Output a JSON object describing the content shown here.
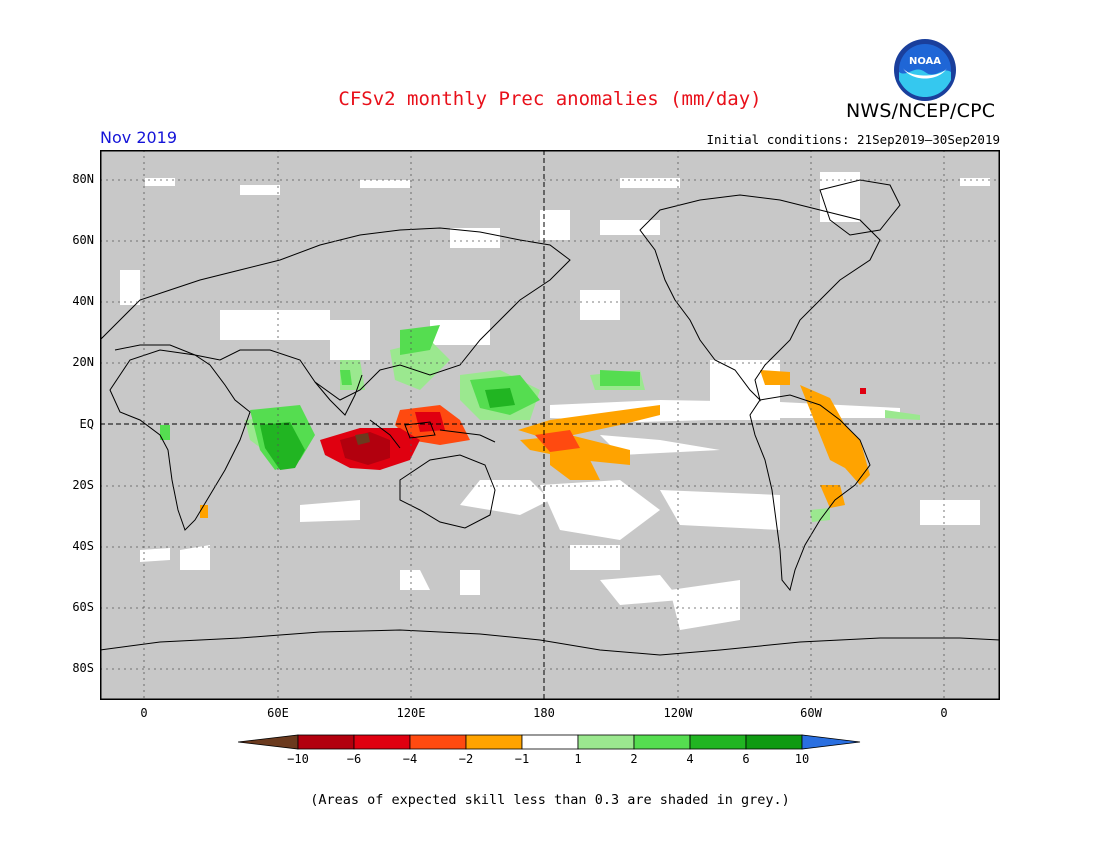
{
  "title": "CFSv2 monthly Prec anomalies (mm/day)",
  "organization": "NWS/NCEP/CPC",
  "logo_text": "NOAA",
  "month": "Nov 2019",
  "initial_conditions": "Initial conditions: 21Sep2019–30Sep2019",
  "lat_labels": [
    "80N",
    "60N",
    "40N",
    "20N",
    "EQ",
    "20S",
    "40S",
    "60S",
    "80S"
  ],
  "lon_labels": [
    "0",
    "60E",
    "120E",
    "180",
    "120W",
    "60W",
    "0"
  ],
  "colorbar": {
    "labels": [
      "−10",
      "−6",
      "−4",
      "−2",
      "−1",
      "1",
      "2",
      "4",
      "6",
      "10"
    ],
    "colors": [
      "#6b3a1e",
      "#b2000e",
      "#e00010",
      "#ff4a10",
      "#ffa300",
      "#ffffff",
      "#9be88f",
      "#55dd50",
      "#21b522",
      "#0f9a12",
      "#2a6fe0"
    ]
  },
  "grey_shade_color": "#c8c8c8",
  "note": "(Areas of expected skill less than 0.3 are shaded in grey.)"
}
